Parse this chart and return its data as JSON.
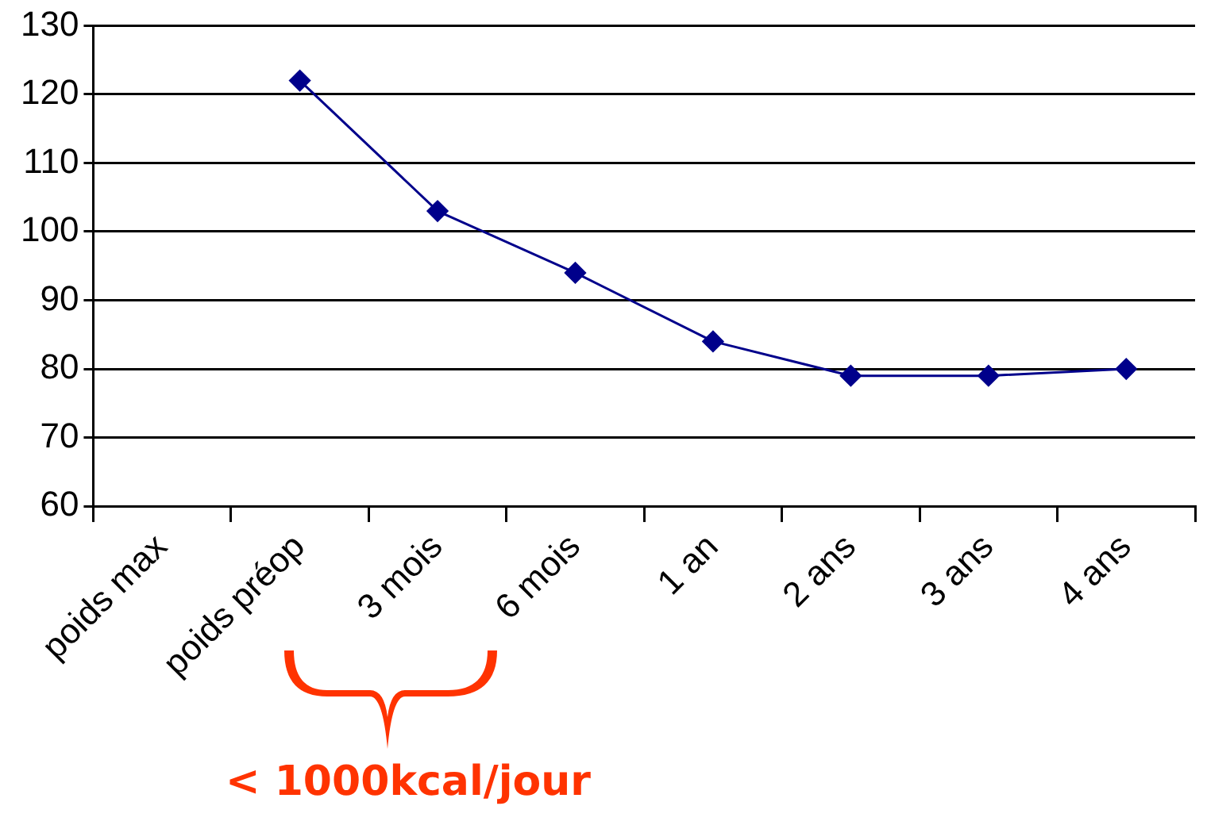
{
  "chart_data": {
    "type": "line",
    "categories": [
      "poids max",
      "poids préop",
      "3 mois",
      "6 mois",
      "1 an",
      "2 ans",
      "3 ans",
      "4 ans"
    ],
    "series": [
      {
        "color": "#00008b",
        "values": [
          null,
          122,
          103,
          94,
          84,
          79,
          79,
          80
        ]
      }
    ],
    "ylim": [
      60,
      130
    ],
    "yticks": [
      60,
      70,
      80,
      90,
      100,
      110,
      120,
      130
    ],
    "grid": "y",
    "legend": false,
    "marker": "diamond",
    "line_style": "solid",
    "annotations": [
      "< 1000kcal/jour"
    ]
  }
}
